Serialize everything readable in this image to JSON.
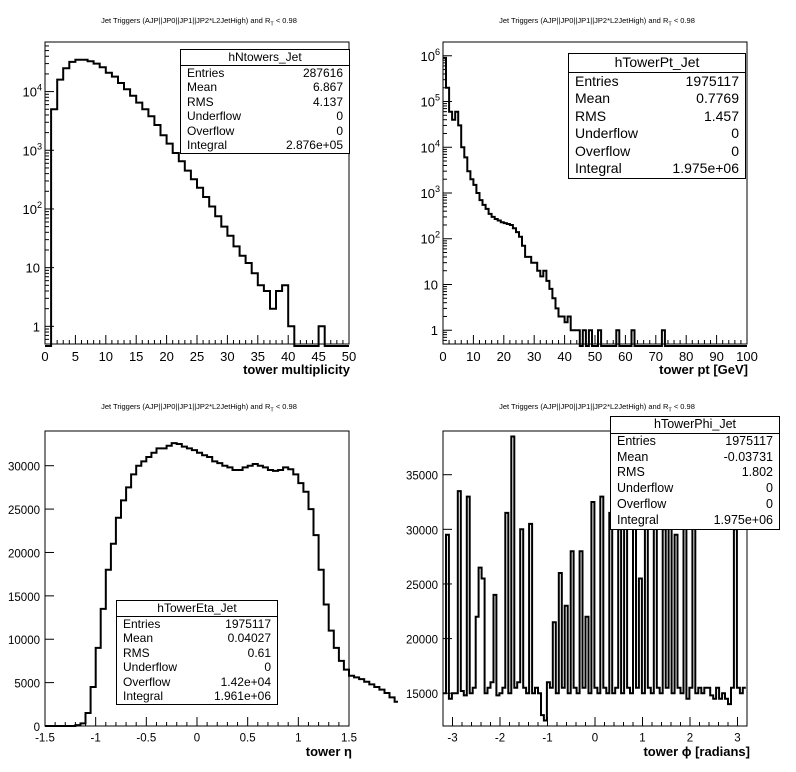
{
  "chart_data": [
    {
      "type": "histogram",
      "title_main": "Jet Triggers (AJP||JP0||JP1||JP2*L2JetHigh) and R",
      "title_sub": "T",
      "title_tail": " < 0.98",
      "xlabel": "tower multiplicity",
      "xlim": [
        0,
        50
      ],
      "ylim": [
        0.5,
        70000
      ],
      "log_y": true,
      "x_ticks": [
        0,
        5,
        10,
        15,
        20,
        25,
        30,
        35,
        40,
        45,
        50
      ],
      "y_ticks": [
        {
          "value": 1,
          "base": "1",
          "exp": ""
        },
        {
          "value": 10,
          "base": "10",
          "exp": ""
        },
        {
          "value": 100,
          "base": "10",
          "exp": "2"
        },
        {
          "value": 1000,
          "base": "10",
          "exp": "3"
        },
        {
          "value": 10000,
          "base": "10",
          "exp": "4"
        }
      ],
      "bin_start": 0,
      "bin_width": 1,
      "values": [
        0,
        5000,
        16000,
        25000,
        32000,
        35000,
        35000,
        33000,
        30000,
        26000,
        21000,
        18000,
        14000,
        11000,
        8500,
        6500,
        5000,
        3800,
        2700,
        1800,
        1300,
        900,
        650,
        450,
        320,
        230,
        160,
        110,
        75,
        50,
        35,
        23,
        16,
        12,
        8,
        5,
        4,
        2,
        4,
        5,
        1,
        0,
        0,
        0,
        0,
        1,
        0,
        0,
        0,
        0
      ],
      "stats": {
        "name": "hNtowers_Jet",
        "rows": [
          {
            "label": "Entries",
            "value": "287616"
          },
          {
            "label": "Mean",
            "value": "6.867"
          },
          {
            "label": "RMS",
            "value": "4.137"
          },
          {
            "label": "Underflow",
            "value": "0"
          },
          {
            "label": "Overflow",
            "value": "0"
          },
          {
            "label": "Integral",
            "value": "2.876e+05"
          }
        ]
      }
    },
    {
      "type": "histogram",
      "title_main": "Jet Triggers (AJP||JP0||JP1||JP2*L2JetHigh) and R",
      "title_sub": "T",
      "title_tail": " < 0.98",
      "xlabel": "tower pt [GeV]",
      "xlim": [
        0,
        100
      ],
      "ylim": [
        0.5,
        2000000
      ],
      "log_y": true,
      "x_ticks": [
        0,
        10,
        20,
        30,
        40,
        50,
        60,
        70,
        80,
        90,
        100
      ],
      "y_ticks": [
        {
          "value": 1,
          "base": "1",
          "exp": ""
        },
        {
          "value": 10,
          "base": "10",
          "exp": ""
        },
        {
          "value": 100,
          "base": "10",
          "exp": "2"
        },
        {
          "value": 1000,
          "base": "10",
          "exp": "3"
        },
        {
          "value": 10000,
          "base": "10",
          "exp": "4"
        },
        {
          "value": 100000,
          "base": "10",
          "exp": "5"
        },
        {
          "value": 1000000,
          "base": "10",
          "exp": "6"
        }
      ],
      "bin_start": 0,
      "bin_width": 1,
      "values": [
        900000,
        200000,
        60000,
        40000,
        60000,
        30000,
        10000,
        6000,
        3000,
        2000,
        1500,
        1000,
        700,
        550,
        450,
        350,
        300,
        270,
        250,
        230,
        220,
        210,
        200,
        170,
        140,
        110,
        70,
        40,
        40,
        30,
        30,
        20,
        15,
        20,
        12,
        8,
        5,
        3,
        2,
        2,
        1.5,
        2,
        1,
        1,
        1,
        0,
        1,
        0,
        1,
        0,
        0,
        1,
        0,
        0,
        0,
        0,
        0,
        1,
        0,
        0,
        0,
        0,
        1,
        0,
        0,
        0,
        0,
        0,
        0,
        0,
        0,
        0,
        1,
        0,
        0,
        0,
        0,
        0,
        0,
        0,
        0,
        0,
        0,
        0,
        0,
        0,
        0,
        0,
        0,
        0,
        0,
        0,
        0,
        0,
        0,
        0,
        0,
        0,
        0,
        0
      ],
      "stats": {
        "name": "hTowerPt_Jet",
        "rows": [
          {
            "label": "Entries",
            "value": "1975117"
          },
          {
            "label": "Mean",
            "value": "0.7769"
          },
          {
            "label": "RMS",
            "value": "1.457"
          },
          {
            "label": "Underflow",
            "value": "0"
          },
          {
            "label": "Overflow",
            "value": "0"
          },
          {
            "label": "Integral",
            "value": "1.975e+06"
          }
        ]
      }
    },
    {
      "type": "histogram",
      "title_main": "Jet Triggers (AJP||JP0||JP1||JP2*L2JetHigh) and R",
      "title_sub": "T",
      "title_tail": " < 0.98",
      "xlabel": "tower η",
      "xlim": [
        -1.5,
        1.5
      ],
      "ylim": [
        0,
        34000
      ],
      "log_y": false,
      "x_ticks": [
        -1.5,
        -1,
        -0.5,
        0,
        0.5,
        1,
        1.5
      ],
      "y_ticks": [
        {
          "value": 0,
          "base": "0",
          "exp": ""
        },
        {
          "value": 5000,
          "base": "5000",
          "exp": ""
        },
        {
          "value": 10000,
          "base": "10000",
          "exp": ""
        },
        {
          "value": 15000,
          "base": "15000",
          "exp": ""
        },
        {
          "value": 20000,
          "base": "20000",
          "exp": ""
        },
        {
          "value": 25000,
          "base": "25000",
          "exp": ""
        },
        {
          "value": 30000,
          "base": "30000",
          "exp": ""
        }
      ],
      "bin_start": -1.5,
      "bin_width": 0.05,
      "values": [
        0,
        0,
        0,
        0,
        0,
        0,
        100,
        300,
        1500,
        4500,
        9000,
        13500,
        18000,
        21000,
        24000,
        26000,
        27500,
        29000,
        30000,
        30500,
        31000,
        31500,
        32000,
        32000,
        32300,
        32600,
        32500,
        32200,
        32000,
        31800,
        31500,
        31200,
        31000,
        30500,
        30300,
        30000,
        29800,
        29500,
        29500,
        29800,
        30000,
        30200,
        30000,
        29800,
        29500,
        29400,
        29500,
        29800,
        29600,
        29000,
        28000,
        27000,
        25000,
        22000,
        18000,
        14000,
        11000,
        9000,
        7500,
        6500,
        5800,
        5600,
        5400,
        5100,
        4800,
        4500,
        4200,
        3800,
        3300,
        2800,
        2300,
        1700,
        1200,
        800,
        400
      ],
      "stats": {
        "name": "hTowerEta_Jet",
        "rows": [
          {
            "label": "Entries",
            "value": "1975117"
          },
          {
            "label": "Mean",
            "value": "0.04027"
          },
          {
            "label": "RMS",
            "value": "0.61"
          },
          {
            "label": "Underflow",
            "value": "0"
          },
          {
            "label": "Overflow",
            "value": "1.42e+04"
          },
          {
            "label": "Integral",
            "value": "1.961e+06"
          }
        ]
      }
    },
    {
      "type": "histogram",
      "title_main": "Jet Triggers (AJP||JP0||JP1||JP2*L2JetHigh) and R",
      "title_sub": "T",
      "title_tail": " < 0.98",
      "xlabel": "tower ϕ [radians]",
      "xlim": [
        -3.2,
        3.2
      ],
      "ylim": [
        12000,
        39000
      ],
      "log_y": false,
      "x_ticks": [
        -3,
        -2,
        -1,
        0,
        1,
        2,
        3
      ],
      "y_ticks": [
        {
          "value": 15000,
          "base": "15000",
          "exp": ""
        },
        {
          "value": 20000,
          "base": "20000",
          "exp": ""
        },
        {
          "value": 25000,
          "base": "25000",
          "exp": ""
        },
        {
          "value": 30000,
          "base": "30000",
          "exp": ""
        },
        {
          "value": 35000,
          "base": "35000",
          "exp": ""
        }
      ],
      "bin_start": -3.2,
      "bin_width": 0.0625,
      "values": [
        15000,
        29500,
        14500,
        15000,
        15000,
        33500,
        15200,
        14800,
        33000,
        15000,
        15500,
        22000,
        26500,
        25500,
        15000,
        15500,
        16000,
        24000,
        14800,
        15000,
        15500,
        31500,
        15000,
        38500,
        15500,
        16000,
        30000,
        15500,
        15000,
        30500,
        15000,
        15500,
        15000,
        13000,
        12500,
        16000,
        15500,
        21500,
        15000,
        26000,
        15500,
        23000,
        15000,
        28000,
        15500,
        15000,
        28000,
        15500,
        22000,
        15000,
        32500,
        15500,
        15000,
        33000,
        15500,
        15000,
        31500,
        15000,
        15500,
        30000,
        15000,
        33000,
        15500,
        15000,
        31500,
        15500,
        25500,
        15000,
        31500,
        15500,
        15000,
        32000,
        15500,
        15000,
        30000,
        15500,
        30500,
        15000,
        29500,
        15500,
        15000,
        30500,
        14500,
        15500,
        31000,
        15000,
        15500,
        15000,
        15500,
        15500,
        14800,
        14500,
        15500,
        14500,
        15000,
        14500,
        14000,
        15500,
        30000,
        15500,
        15000,
        15500
      ],
      "stats": {
        "name": "hTowerPhi_Jet",
        "rows": [
          {
            "label": "Entries",
            "value": "1975117"
          },
          {
            "label": "Mean",
            "value": "-0.03731"
          },
          {
            "label": "RMS",
            "value": "1.802"
          },
          {
            "label": "Underflow",
            "value": "0"
          },
          {
            "label": "Overflow",
            "value": "0"
          },
          {
            "label": "Integral",
            "value": "1.975e+06"
          }
        ]
      }
    }
  ]
}
